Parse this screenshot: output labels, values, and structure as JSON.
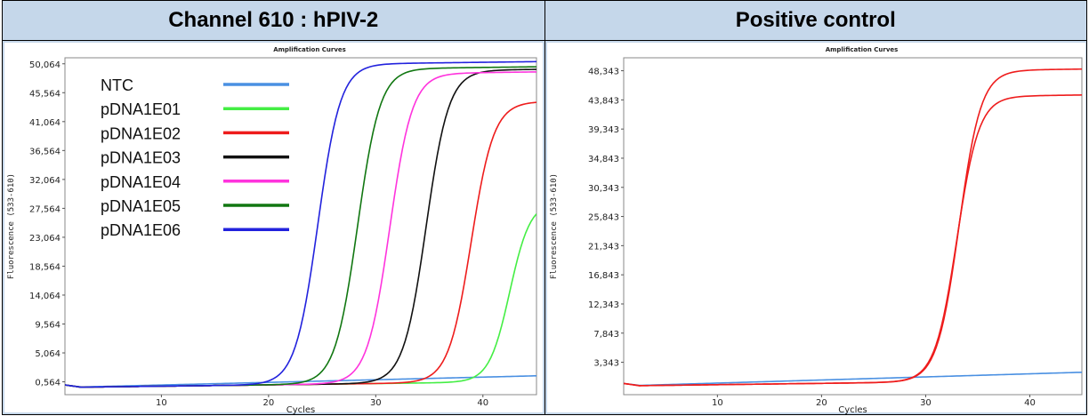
{
  "panels": [
    {
      "header": "Channel 610 : hPIV-2",
      "chart_data": {
        "type": "line",
        "title": "Amplification Curves",
        "xlabel": "Cycles",
        "ylabel": "Fluorescence (533-610)",
        "xlim": [
          1,
          45
        ],
        "ylim": [
          -1436,
          51000
        ],
        "xticks": [
          10,
          20,
          30,
          40
        ],
        "yticks": [
          0.564,
          5.064,
          9.564,
          14.064,
          18.564,
          23.064,
          27.564,
          32.064,
          36.564,
          41.064,
          45.564,
          50.064
        ],
        "ytick_labels": [
          "0,564",
          "5,064",
          "9,564",
          "14,064",
          "18,564",
          "23,064",
          "27,564",
          "32,064",
          "36,564",
          "41,064",
          "45,564",
          "50,064"
        ],
        "legend_position": "top-left",
        "series": [
          {
            "name": "NTC",
            "color": "#4a90e2",
            "baseline": 0,
            "plateau": 1500,
            "midpoint": 1000,
            "slope": 1,
            "linear": true
          },
          {
            "name": "pDNA1E01",
            "color": "#44ee44",
            "baseline": 0,
            "plateau": 28000,
            "midpoint": 42.5,
            "slope": 1.05
          },
          {
            "name": "pDNA1E02",
            "color": "#ee1c1c",
            "baseline": 0,
            "plateau": 43600,
            "midpoint": 38.9,
            "slope": 0.95
          },
          {
            "name": "pDNA1E03",
            "color": "#111111",
            "baseline": 0,
            "plateau": 48600,
            "midpoint": 34.7,
            "slope": 0.95
          },
          {
            "name": "pDNA1E04",
            "color": "#ff33dd",
            "baseline": 0,
            "plateau": 48200,
            "midpoint": 31.3,
            "slope": 0.95
          },
          {
            "name": "pDNA1E05",
            "color": "#117711",
            "baseline": 0,
            "plateau": 49000,
            "midpoint": 28.3,
            "slope": 0.95
          },
          {
            "name": "pDNA1E06",
            "color": "#2222dd",
            "baseline": 0,
            "plateau": 49800,
            "midpoint": 24.6,
            "slope": 0.95
          }
        ]
      }
    },
    {
      "header": "Positive control",
      "chart_data": {
        "type": "line",
        "title": "Amplification Curves",
        "xlabel": "Cycles",
        "ylabel": "Fluorescence (533-610)",
        "xlim": [
          1,
          45
        ],
        "ylim": [
          -1657,
          50343
        ],
        "xticks": [
          10,
          20,
          30,
          40
        ],
        "yticks": [
          3.343,
          7.843,
          12.343,
          16.843,
          21.343,
          25.843,
          30.343,
          34.843,
          39.343,
          43.843,
          48.343
        ],
        "ytick_labels": [
          "3,343",
          "7,843",
          "12,343",
          "16,843",
          "21,343",
          "25,843",
          "30,343",
          "34,843",
          "39,343",
          "43,843",
          "48,343"
        ],
        "legend_position": "none",
        "series": [
          {
            "color": "#4a90e2",
            "baseline": 0,
            "plateau": 1800,
            "midpoint": 1000,
            "slope": 1,
            "linear": true
          },
          {
            "color": "#ee1c1c",
            "baseline": 0,
            "plateau": 48000,
            "midpoint": 33.2,
            "slope": 0.95
          },
          {
            "color": "#ee1c1c",
            "baseline": 0,
            "plateau": 44000,
            "midpoint": 33.0,
            "slope": 0.95
          }
        ]
      }
    }
  ]
}
